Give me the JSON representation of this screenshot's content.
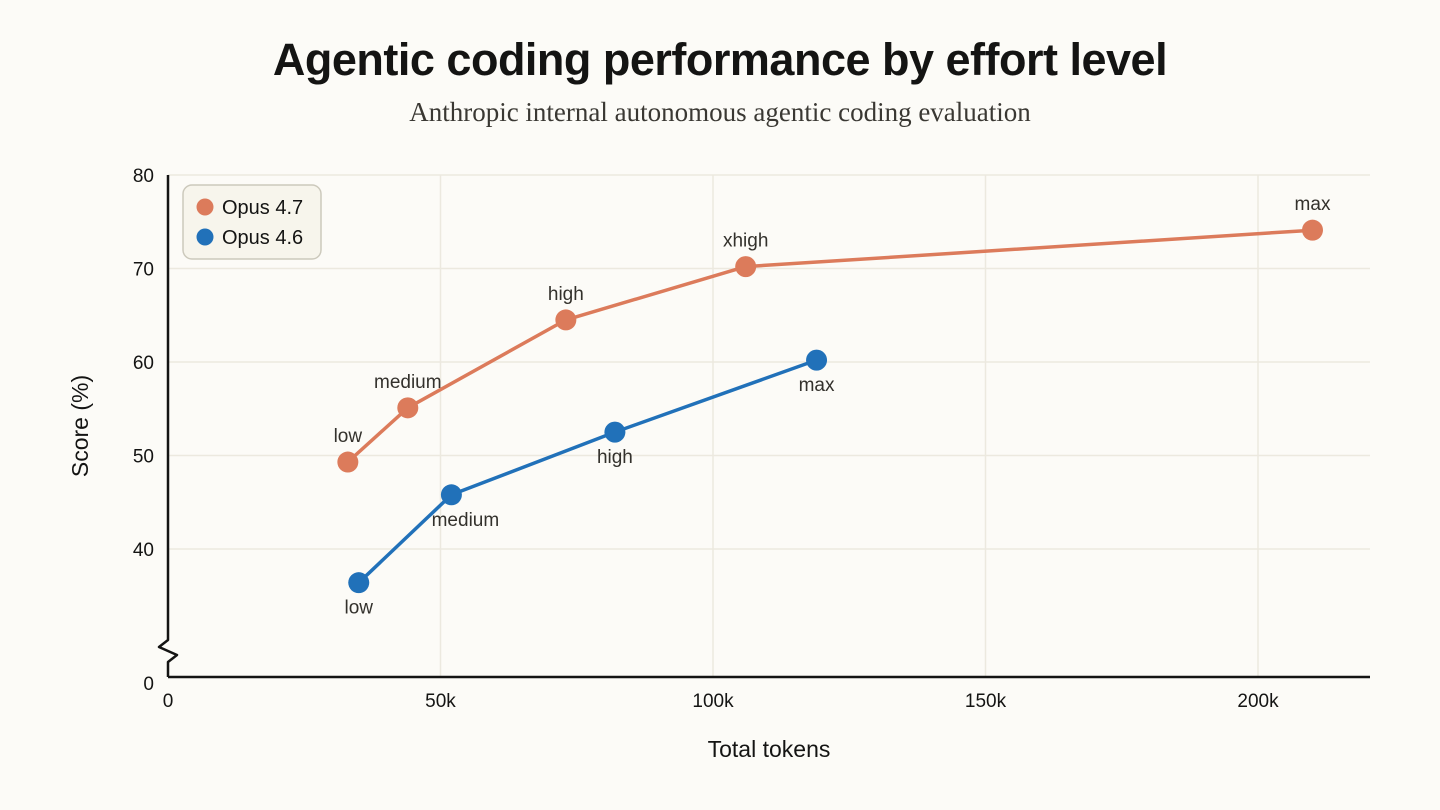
{
  "title": "Agentic coding performance by effort level",
  "subtitle": "Anthropic internal autonomous agentic coding evaluation",
  "chart_data": {
    "type": "line",
    "title": "Agentic coding performance by effort level",
    "subtitle": "Anthropic internal autonomous agentic coding evaluation",
    "xlabel": "Total tokens",
    "ylabel": "Score (%)",
    "grid": true,
    "y_axis_break": true,
    "xlim": [
      0,
      220000
    ],
    "ylim": [
      0,
      80
    ],
    "x_ticks": {
      "values": [
        0,
        50000,
        100000,
        150000,
        200000
      ],
      "labels": [
        "0",
        "50k",
        "100k",
        "150k",
        "200k"
      ]
    },
    "y_ticks": {
      "values": [
        40,
        50,
        60,
        70,
        80
      ],
      "labels": [
        "40",
        "50",
        "60",
        "70",
        "80"
      ],
      "zero_label": "0"
    },
    "legend": {
      "position": "top-left",
      "entries": [
        "Opus 4.7",
        "Opus 4.6"
      ]
    },
    "series": [
      {
        "name": "Opus 4.7",
        "color": "#DC7B5B",
        "label_placement": "above",
        "points": [
          {
            "label": "low",
            "tokens": 33000,
            "score": 49.3
          },
          {
            "label": "medium",
            "tokens": 44000,
            "score": 55.1
          },
          {
            "label": "high",
            "tokens": 73000,
            "score": 64.5
          },
          {
            "label": "xhigh",
            "tokens": 106000,
            "score": 70.2
          },
          {
            "label": "max",
            "tokens": 210000,
            "score": 74.1
          }
        ]
      },
      {
        "name": "Opus 4.6",
        "color": "#2171B9",
        "label_placement": "below",
        "points": [
          {
            "label": "low",
            "tokens": 35000,
            "score": 36.4
          },
          {
            "label": "medium",
            "tokens": 52000,
            "score": 45.8,
            "label_dx": 14
          },
          {
            "label": "high",
            "tokens": 82000,
            "score": 52.5
          },
          {
            "label": "max",
            "tokens": 119000,
            "score": 60.2
          }
        ]
      }
    ]
  },
  "colors": {
    "background": "#FCFBF7",
    "grid": "#ECE9DF",
    "axis": "#141413",
    "text": "#141413",
    "muted_text": "#33312C",
    "legend_fill": "#F7F5EC",
    "legend_border": "#CCC9BC"
  }
}
